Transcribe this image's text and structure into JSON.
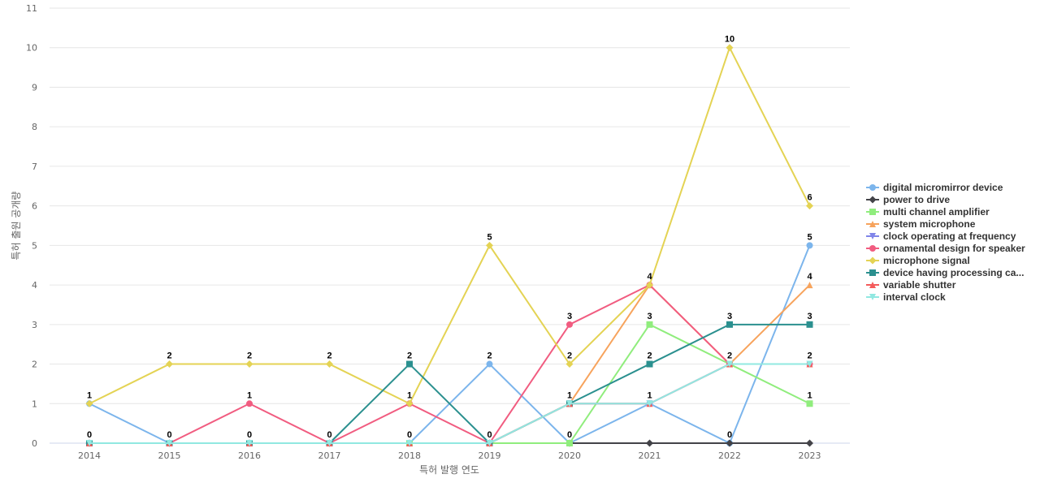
{
  "chart_data": {
    "type": "line",
    "title": "",
    "xlabel": "특허 발행 연도",
    "ylabel": "특허 출원 공개량",
    "x": [
      "2014",
      "2015",
      "2016",
      "2017",
      "2018",
      "2019",
      "2020",
      "2021",
      "2022",
      "2023"
    ],
    "ylim": [
      0,
      11
    ],
    "yticks": [
      0,
      1,
      2,
      3,
      4,
      5,
      6,
      7,
      8,
      9,
      10,
      11
    ],
    "grid": true,
    "legend_position": "right",
    "series": [
      {
        "name": "digital micromirror device",
        "color": "#7cb5ec",
        "marker": "circle",
        "values": [
          1,
          0,
          0,
          0,
          0,
          2,
          0,
          1,
          0,
          5
        ]
      },
      {
        "name": "power to drive",
        "color": "#434348",
        "marker": "diamond",
        "values": [
          0,
          0,
          0,
          0,
          0,
          0,
          0,
          0,
          0,
          0
        ]
      },
      {
        "name": "multi channel amplifier",
        "color": "#90ed7d",
        "marker": "square",
        "values": [
          0,
          0,
          0,
          0,
          0,
          0,
          0,
          3,
          2,
          1
        ]
      },
      {
        "name": "system microphone",
        "color": "#f7a35c",
        "marker": "triangle",
        "values": [
          0,
          0,
          0,
          0,
          0,
          0,
          1,
          4,
          2,
          4
        ]
      },
      {
        "name": "clock operating at frequency",
        "color": "#8085e9",
        "marker": "triangle-down",
        "values": [
          0,
          0,
          0,
          0,
          0,
          0,
          1,
          1,
          2,
          2
        ]
      },
      {
        "name": "ornamental design for speaker",
        "color": "#f15c80",
        "marker": "circle",
        "values": [
          0,
          0,
          1,
          0,
          1,
          0,
          3,
          4,
          2,
          2
        ]
      },
      {
        "name": "microphone signal",
        "color": "#e4d354",
        "marker": "diamond",
        "values": [
          1,
          2,
          2,
          2,
          1,
          5,
          2,
          4,
          10,
          6
        ]
      },
      {
        "name": "device having processing ca...",
        "color": "#2b908f",
        "marker": "square",
        "values": [
          0,
          0,
          0,
          0,
          2,
          0,
          1,
          2,
          3,
          3
        ]
      },
      {
        "name": "variable shutter",
        "color": "#f45b5b",
        "marker": "triangle",
        "values": [
          0,
          0,
          0,
          0,
          0,
          0,
          1,
          1,
          2,
          2
        ]
      },
      {
        "name": "interval clock",
        "color": "#91e8e1",
        "marker": "triangle-down",
        "values": [
          0,
          0,
          0,
          0,
          0,
          0,
          1,
          1,
          2,
          2
        ]
      }
    ],
    "data_labels": [
      {
        "x": "2014",
        "text": "1",
        "value": 1
      },
      {
        "x": "2014",
        "text": "0",
        "value": 0
      },
      {
        "x": "2015",
        "text": "2",
        "value": 2
      },
      {
        "x": "2015",
        "text": "0",
        "value": 0
      },
      {
        "x": "2016",
        "text": "2",
        "value": 2
      },
      {
        "x": "2016",
        "text": "1",
        "value": 1
      },
      {
        "x": "2016",
        "text": "0",
        "value": 0
      },
      {
        "x": "2017",
        "text": "2",
        "value": 2
      },
      {
        "x": "2017",
        "text": "0",
        "value": 0
      },
      {
        "x": "2018",
        "text": "2",
        "value": 2
      },
      {
        "x": "2018",
        "text": "1",
        "value": 1
      },
      {
        "x": "2018",
        "text": "0",
        "value": 0
      },
      {
        "x": "2019",
        "text": "5",
        "value": 5
      },
      {
        "x": "2019",
        "text": "2",
        "value": 2
      },
      {
        "x": "2019",
        "text": "0",
        "value": 0
      },
      {
        "x": "2020",
        "text": "3",
        "value": 3
      },
      {
        "x": "2020",
        "text": "2",
        "value": 2
      },
      {
        "x": "2020",
        "text": "1",
        "value": 1
      },
      {
        "x": "2020",
        "text": "0",
        "value": 0
      },
      {
        "x": "2021",
        "text": "4",
        "value": 4
      },
      {
        "x": "2021",
        "text": "3",
        "value": 3
      },
      {
        "x": "2021",
        "text": "2",
        "value": 2
      },
      {
        "x": "2021",
        "text": "1",
        "value": 1
      },
      {
        "x": "2022",
        "text": "10",
        "value": 10
      },
      {
        "x": "2022",
        "text": "3",
        "value": 3
      },
      {
        "x": "2022",
        "text": "2",
        "value": 2
      },
      {
        "x": "2022",
        "text": "0",
        "value": 0
      },
      {
        "x": "2023",
        "text": "6",
        "value": 6
      },
      {
        "x": "2023",
        "text": "5",
        "value": 5
      },
      {
        "x": "2023",
        "text": "4",
        "value": 4
      },
      {
        "x": "2023",
        "text": "3",
        "value": 3
      },
      {
        "x": "2023",
        "text": "2",
        "value": 2
      },
      {
        "x": "2023",
        "text": "1",
        "value": 1
      }
    ]
  }
}
